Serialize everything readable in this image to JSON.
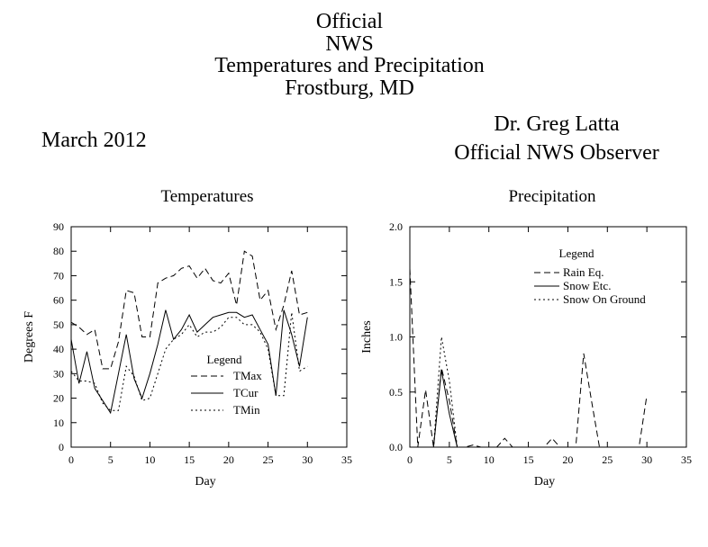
{
  "header": {
    "title_lines": [
      "Official",
      "NWS",
      "Temperatures and Precipitation",
      "Frostburg, MD"
    ],
    "month": "March 2012",
    "observer_lines": [
      "Dr. Greg Latta",
      "Official NWS Observer"
    ]
  },
  "chart_data": [
    {
      "type": "line",
      "title": "Temperatures",
      "xlabel": "Day",
      "ylabel": "Degrees F",
      "xlim": [
        0,
        35
      ],
      "ylim": [
        0,
        90
      ],
      "xticks": [
        0,
        5,
        10,
        15,
        20,
        25,
        30,
        35
      ],
      "yticks": [
        0,
        10,
        20,
        30,
        40,
        50,
        60,
        70,
        80,
        90
      ],
      "grid": false,
      "legend": {
        "title": "Legend",
        "placement": "bottom-center"
      },
      "series": [
        {
          "name": "TMax",
          "style": "dashed",
          "x": [
            0,
            1,
            2,
            3,
            4,
            5,
            6,
            7,
            8,
            9,
            10,
            11,
            12,
            13,
            14,
            15,
            16,
            17,
            18,
            19,
            20,
            21,
            22,
            23,
            24,
            25,
            26,
            27,
            28,
            29,
            30
          ],
          "y": [
            51,
            49,
            46,
            48,
            32,
            32,
            43,
            64,
            63,
            45,
            45,
            67,
            69,
            70,
            73,
            74,
            69,
            73,
            68,
            67,
            71,
            58,
            80,
            78,
            60,
            64,
            48,
            58,
            72,
            54,
            55
          ]
        },
        {
          "name": "TCur",
          "style": "solid",
          "x": [
            0,
            1,
            2,
            3,
            4,
            5,
            6,
            7,
            8,
            9,
            10,
            11,
            12,
            13,
            14,
            15,
            16,
            17,
            18,
            19,
            20,
            21,
            22,
            23,
            24,
            25,
            26,
            27,
            28,
            29,
            30
          ],
          "y": [
            44,
            26,
            39,
            24,
            19,
            14,
            30,
            46,
            28,
            20,
            30,
            42,
            56,
            44,
            48,
            54,
            47,
            50,
            53,
            54,
            55,
            55,
            53,
            54,
            48,
            42,
            21,
            56,
            46,
            33,
            53
          ]
        },
        {
          "name": "TMin",
          "style": "dotted",
          "x": [
            0,
            1,
            2,
            3,
            4,
            5,
            6,
            7,
            8,
            9,
            10,
            11,
            12,
            13,
            14,
            15,
            16,
            17,
            18,
            19,
            20,
            21,
            22,
            23,
            24,
            25,
            26,
            27,
            28,
            29,
            30
          ],
          "y": [
            31,
            27,
            27,
            26,
            18,
            15,
            15,
            33,
            29,
            19,
            20,
            30,
            40,
            44,
            46,
            50,
            45,
            47,
            47,
            49,
            53,
            53,
            50,
            50,
            47,
            40,
            21,
            21,
            55,
            31,
            33
          ]
        }
      ]
    },
    {
      "type": "line",
      "title": "Precipitation",
      "xlabel": "Day",
      "ylabel": "Inches",
      "xlim": [
        0,
        35
      ],
      "ylim": [
        0,
        2.0
      ],
      "xticks": [
        0,
        5,
        10,
        15,
        20,
        25,
        30,
        35
      ],
      "yticks": [
        "0.0",
        "0.5",
        "1.0",
        "1.5",
        "2.0"
      ],
      "grid": false,
      "legend": {
        "title": "Legend",
        "placement": "top-center"
      },
      "series": [
        {
          "name": "Rain Eq.",
          "style": "dashed",
          "x": [
            0,
            1,
            2,
            3,
            4,
            5,
            6,
            7,
            8,
            9,
            10,
            11,
            12,
            13,
            14,
            15,
            16,
            17,
            18,
            19,
            20,
            21,
            22,
            23,
            24,
            25,
            26,
            27,
            28,
            29,
            30
          ],
          "y": [
            1.62,
            0,
            0.52,
            0,
            0.72,
            0.42,
            0,
            0,
            0.02,
            0,
            0,
            0,
            0.08,
            0,
            0,
            0,
            0,
            0,
            0.08,
            0,
            0,
            0,
            0.85,
            0.42,
            0,
            0,
            0,
            0,
            0,
            0,
            0.47
          ]
        },
        {
          "name": "Snow Etc.",
          "style": "solid",
          "x": [
            0,
            1,
            2,
            3,
            4,
            5,
            6,
            7,
            8,
            9,
            10,
            11,
            12,
            13,
            14,
            15,
            16,
            17,
            18,
            19,
            20,
            21,
            22,
            23,
            24,
            25,
            26,
            27,
            28,
            29,
            30
          ],
          "y": [
            0,
            0,
            0,
            0,
            0.7,
            0.3,
            0,
            0,
            0,
            0,
            0,
            0,
            0,
            0,
            0,
            0,
            0,
            0,
            0,
            0,
            0,
            0,
            0,
            0,
            0,
            0,
            0,
            0,
            0,
            0,
            0
          ]
        },
        {
          "name": "Snow On Ground",
          "style": "dotted",
          "x": [
            0,
            1,
            2,
            3,
            4,
            5,
            6,
            7,
            8,
            9,
            10,
            11,
            12,
            13,
            14,
            15,
            16,
            17,
            18,
            19,
            20,
            21,
            22,
            23,
            24,
            25,
            26,
            27,
            28,
            29,
            30
          ],
          "y": [
            0,
            0,
            0,
            0,
            1.0,
            0.6,
            0,
            0,
            0,
            0,
            0,
            0,
            0,
            0,
            0,
            0,
            0,
            0,
            0,
            0,
            0,
            0,
            0,
            0,
            0,
            0,
            0,
            0,
            0,
            0,
            0
          ]
        }
      ]
    }
  ]
}
